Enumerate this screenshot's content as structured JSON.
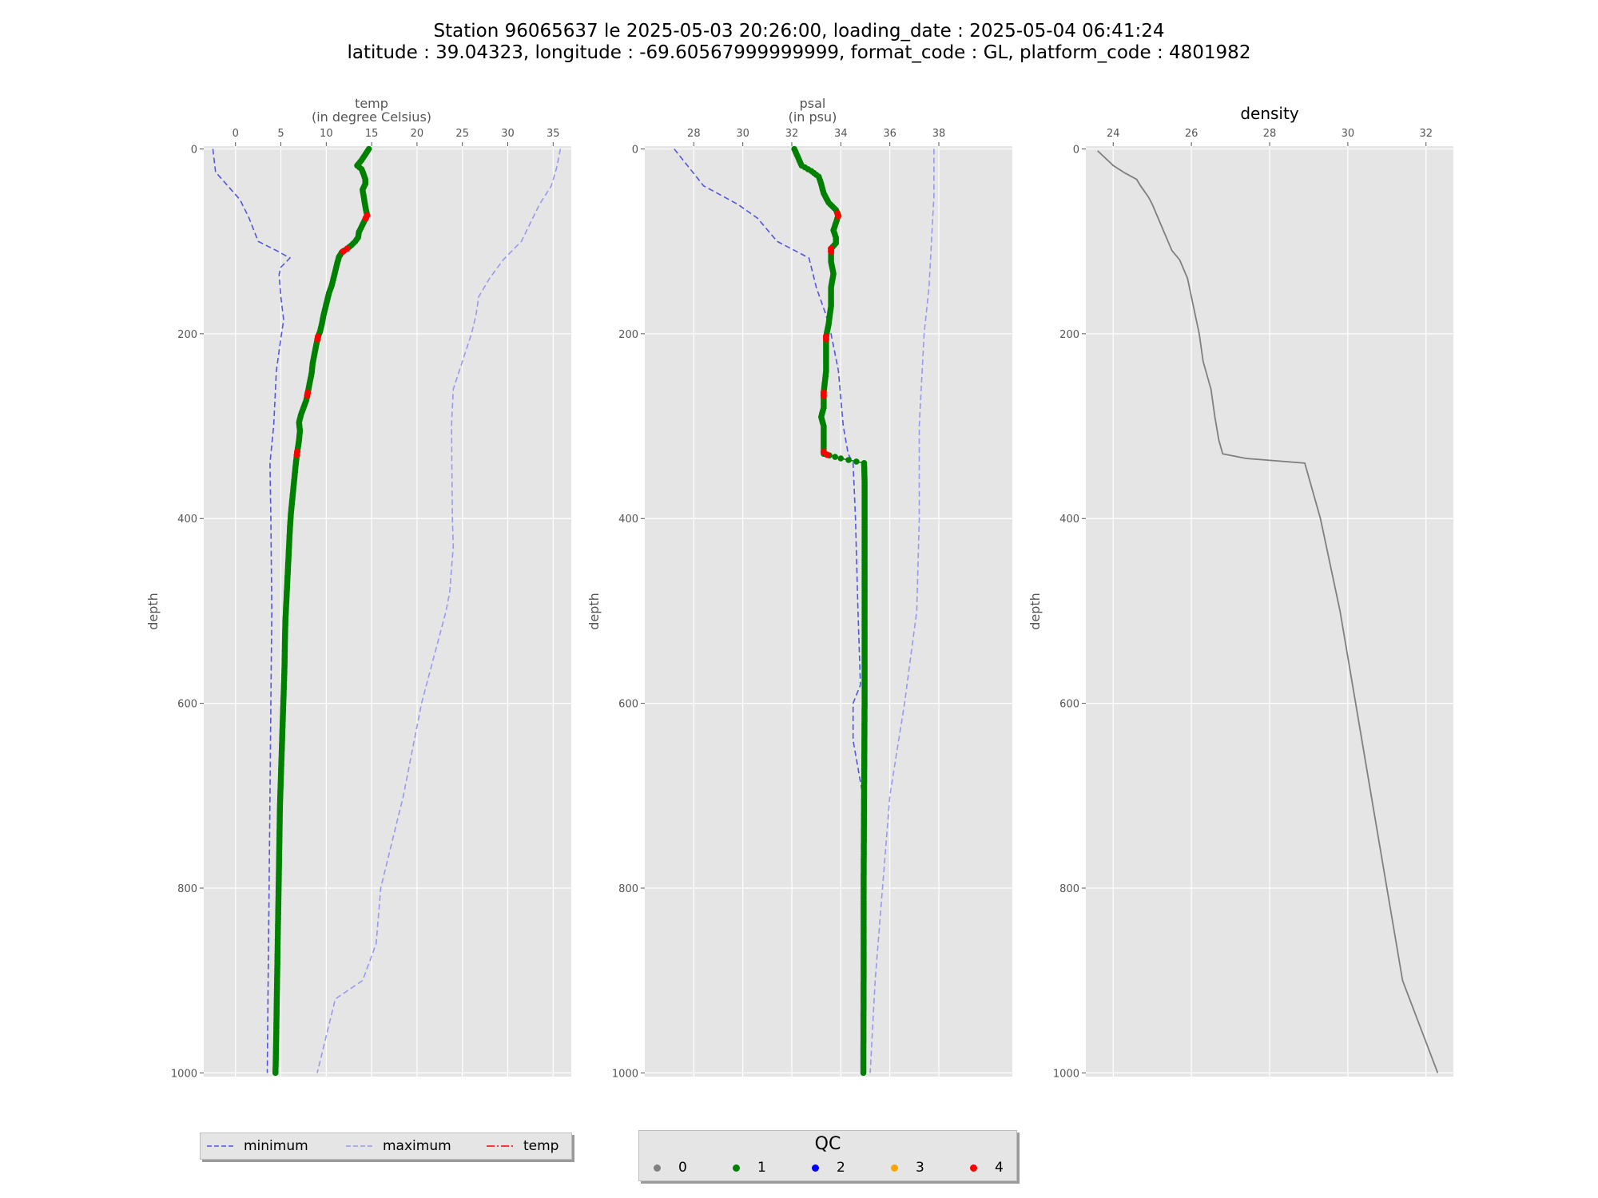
{
  "title": {
    "line1": "Station 96065637 le 2025-05-03 20:26:00, loading_date : 2025-05-04 06:41:24",
    "line2": "latitude : 39.04323, longitude : -69.60567999999999, format_code : GL, platform_code : 4801982"
  },
  "colors": {
    "panel_bg": "#e5e5e5",
    "grid": "#ffffff",
    "min_line": "#5555dd",
    "max_line": "#9999ee",
    "qc0": "#808080",
    "qc1": "#008000",
    "qc2": "#0000ff",
    "qc3": "#ffa500",
    "qc4": "#ff0000",
    "density_line": "#7f7f7f"
  },
  "legend": {
    "minimum": "minimum",
    "maximum": "maximum",
    "temp": "temp"
  },
  "qc_legend": {
    "title": "QC",
    "labels": [
      "0",
      "1",
      "2",
      "3",
      "4"
    ]
  },
  "chart_data": [
    {
      "type": "line",
      "title": "temp",
      "subtitle": "(in degree Celsius)",
      "xlabel": "temp",
      "ylabel": "depth",
      "xlim": [
        -3.5,
        37
      ],
      "ylim": [
        1004,
        -3
      ],
      "x_axis_position": "top",
      "xticks": [
        0,
        5,
        10,
        15,
        20,
        25,
        30,
        35
      ],
      "yticks": [
        0,
        200,
        400,
        600,
        800,
        1000
      ],
      "grid": true,
      "profile": {
        "name": "temp",
        "points": [
          [
            0,
            14.7
          ],
          [
            6,
            14.3
          ],
          [
            12,
            13.9
          ],
          [
            18,
            13.4
          ],
          [
            22,
            13.9
          ],
          [
            27,
            14.1
          ],
          [
            33,
            14.3
          ],
          [
            38,
            14.3
          ],
          [
            44,
            14.0
          ],
          [
            50,
            14.1
          ],
          [
            56,
            14.2
          ],
          [
            62,
            14.3
          ],
          [
            67,
            14.4
          ],
          [
            72,
            14.5
          ],
          [
            78,
            14.2
          ],
          [
            84,
            13.9
          ],
          [
            90,
            13.6
          ],
          [
            96,
            13.5
          ],
          [
            100,
            13.2
          ],
          [
            104,
            12.8
          ],
          [
            108,
            12.3
          ],
          [
            112,
            11.7
          ],
          [
            117,
            11.4
          ],
          [
            124,
            11.2
          ],
          [
            132,
            11.0
          ],
          [
            140,
            10.8
          ],
          [
            148,
            10.6
          ],
          [
            156,
            10.3
          ],
          [
            164,
            10.1
          ],
          [
            172,
            9.9
          ],
          [
            180,
            9.7
          ],
          [
            190,
            9.5
          ],
          [
            198,
            9.3
          ],
          [
            203,
            9.1
          ],
          [
            212,
            8.9
          ],
          [
            222,
            8.7
          ],
          [
            232,
            8.5
          ],
          [
            242,
            8.4
          ],
          [
            252,
            8.2
          ],
          [
            262,
            8.0
          ],
          [
            272,
            7.8
          ],
          [
            280,
            7.5
          ],
          [
            288,
            7.2
          ],
          [
            296,
            7.0
          ],
          [
            305,
            7.1
          ],
          [
            315,
            7.0
          ],
          [
            322,
            6.9
          ],
          [
            328,
            6.8
          ],
          [
            336,
            6.7
          ],
          [
            345,
            6.6
          ],
          [
            355,
            6.5
          ],
          [
            365,
            6.4
          ],
          [
            375,
            6.3
          ],
          [
            385,
            6.2
          ],
          [
            395,
            6.1
          ],
          [
            410,
            6.0
          ],
          [
            430,
            5.9
          ],
          [
            450,
            5.8
          ],
          [
            470,
            5.7
          ],
          [
            490,
            5.6
          ],
          [
            510,
            5.5
          ],
          [
            530,
            5.45
          ],
          [
            560,
            5.4
          ],
          [
            590,
            5.3
          ],
          [
            620,
            5.2
          ],
          [
            650,
            5.1
          ],
          [
            680,
            5.0
          ],
          [
            710,
            4.9
          ],
          [
            740,
            4.85
          ],
          [
            770,
            4.8
          ],
          [
            800,
            4.75
          ],
          [
            830,
            4.7
          ],
          [
            860,
            4.65
          ],
          [
            890,
            4.6
          ],
          [
            920,
            4.55
          ],
          [
            950,
            4.5
          ],
          [
            980,
            4.45
          ],
          [
            1000,
            4.4
          ]
        ],
        "qc": [
          {
            "depth": 72,
            "qc": 4
          },
          {
            "depth": 108,
            "qc": 4
          },
          {
            "depth": 203,
            "qc": 4
          },
          {
            "depth": 264,
            "qc": 4
          },
          {
            "depth": 328,
            "qc": 4
          }
        ],
        "default_qc": 1
      },
      "minimum": {
        "name": "minimum",
        "points": [
          [
            0,
            -2.5
          ],
          [
            25,
            -2.2
          ],
          [
            55,
            0.5
          ],
          [
            75,
            1.5
          ],
          [
            100,
            2.5
          ],
          [
            110,
            4.5
          ],
          [
            118,
            6.0
          ],
          [
            128,
            5.0
          ],
          [
            136,
            4.8
          ],
          [
            160,
            5.0
          ],
          [
            185,
            5.3
          ],
          [
            205,
            5.0
          ],
          [
            240,
            4.5
          ],
          [
            300,
            4.2
          ],
          [
            340,
            3.8
          ],
          [
            400,
            3.9
          ],
          [
            500,
            4.0
          ],
          [
            600,
            3.9
          ],
          [
            700,
            3.8
          ],
          [
            800,
            3.7
          ],
          [
            900,
            3.6
          ],
          [
            1000,
            3.5
          ]
        ]
      },
      "maximum": {
        "name": "maximum",
        "points": [
          [
            0,
            35.8
          ],
          [
            20,
            35.4
          ],
          [
            40,
            34.8
          ],
          [
            60,
            33.5
          ],
          [
            80,
            32.5
          ],
          [
            100,
            31.5
          ],
          [
            120,
            29.5
          ],
          [
            140,
            28.0
          ],
          [
            160,
            26.8
          ],
          [
            180,
            26.5
          ],
          [
            200,
            26.0
          ],
          [
            230,
            25.0
          ],
          [
            260,
            24.0
          ],
          [
            300,
            23.8
          ],
          [
            400,
            23.9
          ],
          [
            430,
            24.0
          ],
          [
            480,
            23.6
          ],
          [
            500,
            23.2
          ],
          [
            600,
            20.5
          ],
          [
            650,
            19.5
          ],
          [
            700,
            18.5
          ],
          [
            760,
            17.0
          ],
          [
            800,
            16.0
          ],
          [
            860,
            15.5
          ],
          [
            900,
            14.0
          ],
          [
            920,
            11.0
          ],
          [
            960,
            10.0
          ],
          [
            1000,
            9.0
          ]
        ]
      }
    },
    {
      "type": "line",
      "title": "psal",
      "subtitle": "(in psu)",
      "xlabel": "psal",
      "ylabel": "depth",
      "xlim": [
        26.0,
        41.0
      ],
      "ylim": [
        1004,
        -3
      ],
      "x_axis_position": "top",
      "xticks": [
        28,
        30,
        32,
        34,
        36,
        38
      ],
      "yticks": [
        0,
        200,
        400,
        600,
        800,
        1000
      ],
      "grid": true,
      "profile": {
        "name": "psal",
        "points": [
          [
            0,
            32.1
          ],
          [
            6,
            32.2
          ],
          [
            12,
            32.3
          ],
          [
            18,
            32.4
          ],
          [
            24,
            32.8
          ],
          [
            30,
            33.1
          ],
          [
            38,
            33.2
          ],
          [
            48,
            33.3
          ],
          [
            58,
            33.5
          ],
          [
            66,
            33.8
          ],
          [
            72,
            33.9
          ],
          [
            80,
            33.8
          ],
          [
            88,
            33.7
          ],
          [
            96,
            33.8
          ],
          [
            102,
            33.8
          ],
          [
            108,
            33.6
          ],
          [
            114,
            33.6
          ],
          [
            122,
            33.6
          ],
          [
            135,
            33.7
          ],
          [
            150,
            33.6
          ],
          [
            170,
            33.6
          ],
          [
            190,
            33.5
          ],
          [
            203,
            33.4
          ],
          [
            220,
            33.4
          ],
          [
            240,
            33.4
          ],
          [
            264,
            33.3
          ],
          [
            280,
            33.3
          ],
          [
            290,
            33.2
          ],
          [
            300,
            33.3
          ],
          [
            315,
            33.3
          ],
          [
            330,
            33.3
          ],
          [
            335,
            34.0
          ],
          [
            340,
            34.95
          ],
          [
            360,
            34.97
          ],
          [
            400,
            34.97
          ],
          [
            500,
            34.97
          ],
          [
            600,
            34.97
          ],
          [
            700,
            34.95
          ],
          [
            800,
            34.93
          ],
          [
            900,
            34.93
          ],
          [
            1000,
            34.92
          ]
        ],
        "qc": [
          {
            "depth": 70,
            "qc": 4
          },
          {
            "depth": 108,
            "qc": 4
          },
          {
            "depth": 203,
            "qc": 4
          },
          {
            "depth": 264,
            "qc": 4
          },
          {
            "depth": 328,
            "qc": 4
          }
        ],
        "default_qc": 1
      },
      "minimum": {
        "name": "minimum",
        "points": [
          [
            0,
            27.2
          ],
          [
            20,
            27.8
          ],
          [
            40,
            28.4
          ],
          [
            60,
            29.8
          ],
          [
            75,
            30.6
          ],
          [
            100,
            31.4
          ],
          [
            118,
            32.7
          ],
          [
            150,
            33.0
          ],
          [
            180,
            33.4
          ],
          [
            200,
            33.6
          ],
          [
            240,
            33.9
          ],
          [
            300,
            34.1
          ],
          [
            330,
            34.3
          ],
          [
            340,
            34.5
          ],
          [
            400,
            34.6
          ],
          [
            500,
            34.7
          ],
          [
            580,
            34.8
          ],
          [
            600,
            34.5
          ],
          [
            640,
            34.5
          ],
          [
            700,
            34.9
          ],
          [
            800,
            34.9
          ],
          [
            900,
            34.9
          ],
          [
            1000,
            34.9
          ]
        ]
      },
      "maximum": {
        "name": "maximum",
        "points": [
          [
            0,
            37.8
          ],
          [
            50,
            37.8
          ],
          [
            100,
            37.7
          ],
          [
            150,
            37.6
          ],
          [
            200,
            37.4
          ],
          [
            300,
            37.2
          ],
          [
            400,
            37.2
          ],
          [
            500,
            37.1
          ],
          [
            600,
            36.6
          ],
          [
            700,
            36.0
          ],
          [
            800,
            35.7
          ],
          [
            900,
            35.4
          ],
          [
            1000,
            35.2
          ]
        ]
      }
    },
    {
      "type": "line",
      "title": "density",
      "xlabel": "",
      "ylabel": "depth",
      "xlim": [
        23.3,
        32.7
      ],
      "ylim": [
        1004,
        -3
      ],
      "x_axis_position": "top",
      "xticks": [
        24,
        26,
        28,
        30,
        32
      ],
      "yticks": [
        0,
        200,
        400,
        600,
        800,
        1000
      ],
      "grid": true,
      "series": {
        "name": "density",
        "points": [
          [
            2,
            23.6
          ],
          [
            10,
            23.8
          ],
          [
            18,
            24.0
          ],
          [
            26,
            24.3
          ],
          [
            33,
            24.6
          ],
          [
            40,
            24.7
          ],
          [
            52,
            24.9
          ],
          [
            60,
            25.0
          ],
          [
            70,
            25.1
          ],
          [
            80,
            25.2
          ],
          [
            90,
            25.3
          ],
          [
            100,
            25.4
          ],
          [
            110,
            25.5
          ],
          [
            120,
            25.7
          ],
          [
            140,
            25.9
          ],
          [
            160,
            26.0
          ],
          [
            180,
            26.1
          ],
          [
            200,
            26.2
          ],
          [
            230,
            26.3
          ],
          [
            260,
            26.5
          ],
          [
            290,
            26.6
          ],
          [
            315,
            26.7
          ],
          [
            330,
            26.8
          ],
          [
            335,
            27.4
          ],
          [
            340,
            28.9
          ],
          [
            400,
            29.3
          ],
          [
            500,
            29.8
          ],
          [
            600,
            30.2
          ],
          [
            700,
            30.6
          ],
          [
            800,
            31.0
          ],
          [
            900,
            31.4
          ],
          [
            1000,
            32.3
          ]
        ]
      }
    }
  ]
}
